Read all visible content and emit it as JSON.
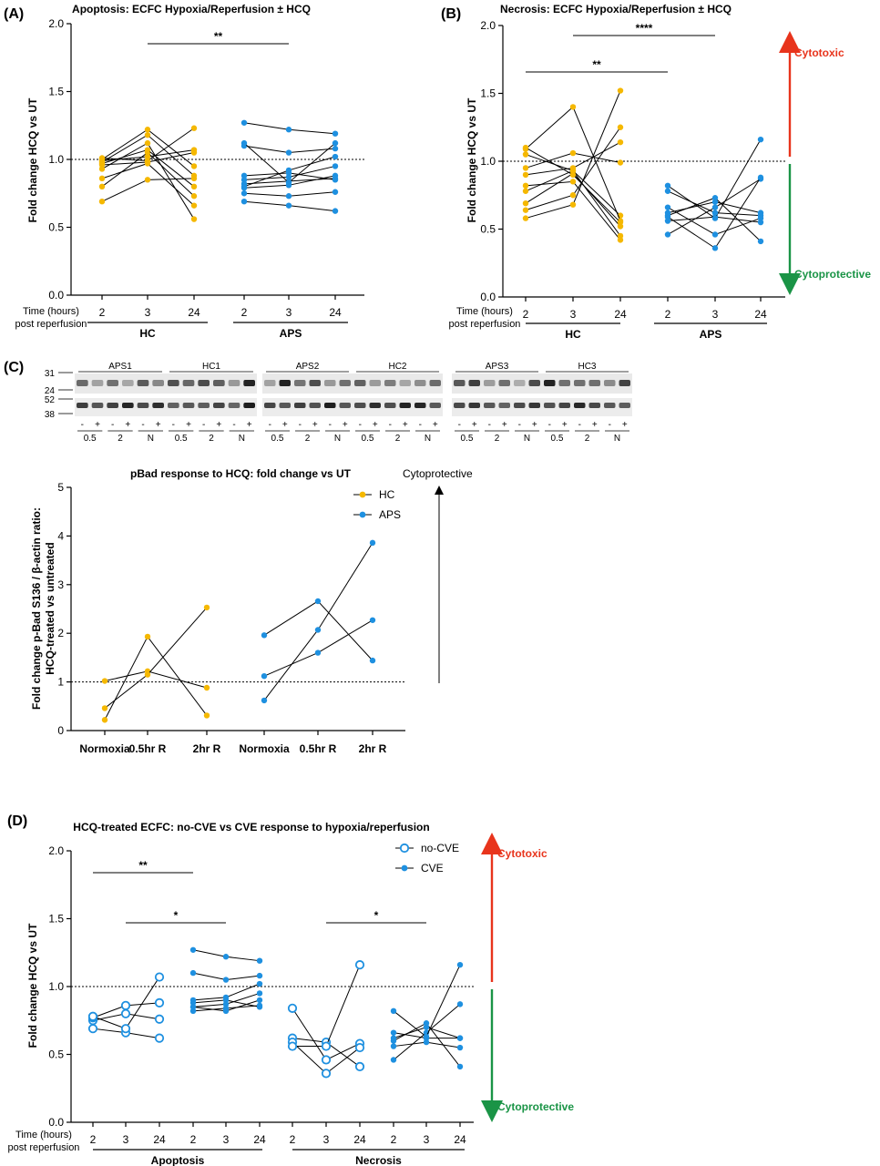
{
  "colors": {
    "hc": "#F5B800",
    "aps": "#1E90E0",
    "cytotoxic": "#E8341C",
    "cytoprotective": "#1A9446",
    "line": "#000000"
  },
  "chart_data": [
    {
      "id": "A",
      "panel": "(A)",
      "type": "scatter",
      "title": "Apoptosis: ECFC Hypoxia/Reperfusion ± HCQ",
      "ylabel": "Fold change HCQ vs UT",
      "yticks": [
        "0.0",
        "0.5",
        "1.0",
        "1.5",
        "2.0"
      ],
      "ylim": [
        0,
        2
      ],
      "xlabel_lines": [
        "Time (hours)",
        "post reperfusion"
      ],
      "x_ticks": [
        "2",
        "3",
        "24",
        "2",
        "3",
        "24"
      ],
      "groups": [
        "HC",
        "APS"
      ],
      "reference_line": 1.0,
      "significance": [
        {
          "label": "**",
          "from": 1,
          "to": 4
        }
      ],
      "series": [
        {
          "name": "HC",
          "color": "hc",
          "groupStart": 0,
          "subjects": [
            [
              0.69,
              0.85,
              0.86
            ],
            [
              0.8,
              1.05,
              0.73
            ],
            [
              0.86,
              0.97,
              0.66
            ],
            [
              0.93,
              1.12,
              0.56
            ],
            [
              0.96,
              0.98,
              1.05
            ],
            [
              0.97,
              1.07,
              0.8
            ],
            [
              0.98,
              1.18,
              0.88
            ],
            [
              1.0,
              1.22,
              0.95
            ],
            [
              0.99,
              1.02,
              1.07
            ],
            [
              1.01,
              0.99,
              1.23
            ]
          ]
        },
        {
          "name": "APS",
          "color": "aps",
          "groupStart": 3,
          "subjects": [
            [
              0.69,
              0.66,
              0.62
            ],
            [
              0.75,
              0.73,
              0.76
            ],
            [
              0.79,
              0.81,
              0.88
            ],
            [
              0.82,
              0.84,
              0.86
            ],
            [
              0.85,
              0.87,
              0.95
            ],
            [
              0.88,
              0.9,
              0.85
            ],
            [
              0.8,
              0.92,
              1.02
            ],
            [
              1.1,
              1.05,
              1.08
            ],
            [
              1.27,
              1.22,
              1.19
            ],
            [
              1.12,
              0.83,
              1.12
            ]
          ]
        }
      ]
    },
    {
      "id": "B",
      "panel": "(B)",
      "type": "scatter",
      "title": "Necrosis: ECFC Hypoxia/Reperfusion ± HCQ",
      "ylabel": "Fold change HCQ vs UT",
      "yticks": [
        "0.0",
        "0.5",
        "1.0",
        "1.5",
        "2.0"
      ],
      "ylim": [
        0,
        2
      ],
      "xlabel_lines": [
        "Time (hours)",
        "post reperfusion"
      ],
      "x_ticks": [
        "2",
        "3",
        "24",
        "2",
        "3",
        "24"
      ],
      "groups": [
        "HC",
        "APS"
      ],
      "reference_line": 1.0,
      "significance": [
        {
          "label": "**",
          "from": 0,
          "to": 3
        },
        {
          "label": "****",
          "from": 1,
          "to": 4
        }
      ],
      "arrow_labels": {
        "up": "Cytotoxic",
        "down": "Cytoprotective"
      },
      "series": [
        {
          "name": "HC",
          "color": "hc",
          "groupStart": 0,
          "subjects": [
            [
              0.58,
              0.68,
              1.52
            ],
            [
              0.64,
              0.75,
              1.25
            ],
            [
              0.69,
              0.91,
              0.52
            ],
            [
              0.78,
              0.93,
              0.6
            ],
            [
              0.82,
              0.85,
              0.42
            ],
            [
              0.9,
              0.95,
              1.14
            ],
            [
              0.95,
              1.06,
              0.99
            ],
            [
              1.05,
              0.93,
              0.45
            ],
            [
              1.09,
              1.4,
              0.56
            ],
            [
              1.1,
              0.9,
              0.55
            ]
          ]
        },
        {
          "name": "APS",
          "color": "aps",
          "groupStart": 3,
          "subjects": [
            [
              0.46,
              0.66,
              0.87
            ],
            [
              0.56,
              0.59,
              0.55
            ],
            [
              0.6,
              0.73,
              0.41
            ],
            [
              0.62,
              0.7,
              0.62
            ],
            [
              0.66,
              0.46,
              0.58
            ],
            [
              0.59,
              0.36,
              0.88
            ],
            [
              0.82,
              0.58,
              1.16
            ],
            [
              0.78,
              0.62,
              0.6
            ]
          ]
        }
      ]
    },
    {
      "id": "Cchart",
      "type": "scatter",
      "title": "pBad response to HCQ: fold change vs UT",
      "ylabel_lines": [
        "Fold change p-Bad S136 / β-actin ratio:",
        "HCQ-treated vs untreated"
      ],
      "yticks": [
        "0",
        "1",
        "2",
        "3",
        "4",
        "5"
      ],
      "ylim": [
        0,
        5
      ],
      "x_ticks": [
        "Normoxia",
        "0.5hr R",
        "2hr R",
        "Normoxia",
        "0.5hr R",
        "2hr R"
      ],
      "reference_line": 1.0,
      "arrow_label": "Cytoprotective",
      "legend": [
        {
          "name": "HC",
          "color": "hc"
        },
        {
          "name": "APS",
          "color": "aps"
        }
      ],
      "series": [
        {
          "name": "HC",
          "color": "hc",
          "groupStart": 0,
          "subjects": [
            [
              1.02,
              1.22,
              0.88
            ],
            [
              0.46,
              1.15,
              2.53
            ],
            [
              0.22,
              1.93,
              0.31
            ]
          ]
        },
        {
          "name": "APS",
          "color": "aps",
          "groupStart": 3,
          "subjects": [
            [
              1.96,
              2.66,
              1.44
            ],
            [
              1.12,
              1.6,
              2.27
            ],
            [
              0.62,
              2.07,
              3.86
            ]
          ]
        }
      ]
    },
    {
      "id": "D",
      "panel": "(D)",
      "type": "scatter",
      "title": "HCQ-treated ECFC: no-CVE vs CVE response to hypoxia/reperfusion",
      "ylabel": "Fold change HCQ vs UT",
      "yticks": [
        "0.0",
        "0.5",
        "1.0",
        "1.5",
        "2.0"
      ],
      "ylim": [
        0,
        2
      ],
      "xlabel_lines": [
        "Time (hours)",
        "post reperfusion"
      ],
      "x_ticks": [
        "2",
        "3",
        "24",
        "2",
        "3",
        "24",
        "2",
        "3",
        "24",
        "2",
        "3",
        "24"
      ],
      "groups": [
        "Apoptosis",
        "Necrosis"
      ],
      "reference_line": 1.0,
      "significance": [
        {
          "label": "**",
          "from": 0,
          "to": 3
        },
        {
          "label": "*",
          "from": 1,
          "to": 4
        },
        {
          "label": "*",
          "from": 7,
          "to": 10
        }
      ],
      "arrow_labels": {
        "up": "Cytotoxic",
        "down": "Cytoprotective"
      },
      "legend": [
        {
          "name": "no-CVE",
          "style": "open"
        },
        {
          "name": "CVE",
          "style": "filled"
        }
      ],
      "series": [
        {
          "name": "no-CVE",
          "color": "aps",
          "open": true,
          "groupStart": 0,
          "subjects": [
            [
              0.69,
              0.66,
              0.62
            ],
            [
              0.75,
              0.8,
              0.76
            ],
            [
              0.77,
              0.86,
              0.88
            ],
            [
              0.78,
              0.69,
              1.07
            ]
          ]
        },
        {
          "name": "CVE",
          "color": "aps",
          "open": false,
          "groupStart": 3,
          "subjects": [
            [
              0.82,
              0.84,
              0.86
            ],
            [
              0.85,
              0.87,
              0.95
            ],
            [
              0.88,
              0.9,
              0.85
            ],
            [
              0.9,
              0.92,
              1.02
            ],
            [
              1.1,
              1.05,
              1.08
            ],
            [
              1.27,
              1.22,
              1.19
            ],
            [
              0.85,
              0.82,
              0.9
            ]
          ]
        },
        {
          "name": "no-CVE",
          "color": "aps",
          "open": true,
          "groupStart": 6,
          "subjects": [
            [
              0.84,
              0.46,
              0.58
            ],
            [
              0.62,
              0.59,
              0.41
            ],
            [
              0.59,
              0.36,
              0.55
            ],
            [
              0.56,
              0.56,
              1.16
            ]
          ]
        },
        {
          "name": "CVE",
          "color": "aps",
          "open": false,
          "groupStart": 9,
          "subjects": [
            [
              0.46,
              0.66,
              0.87
            ],
            [
              0.56,
              0.59,
              0.55
            ],
            [
              0.6,
              0.73,
              0.41
            ],
            [
              0.62,
              0.7,
              0.62
            ],
            [
              0.66,
              0.62,
              0.62
            ],
            [
              0.82,
              0.63,
              1.16
            ]
          ]
        }
      ]
    }
  ],
  "blot": {
    "panel": "(C)",
    "markers": [
      "31",
      "24",
      "52",
      "38"
    ],
    "blocks": [
      {
        "groups": [
          "APS1",
          "HC1"
        ]
      },
      {
        "groups": [
          "APS2",
          "HC2"
        ]
      },
      {
        "groups": [
          "APS3",
          "HC3"
        ]
      }
    ],
    "treatment_signs": [
      "-",
      "+"
    ],
    "conditions": [
      "0.5",
      "2",
      "N"
    ]
  }
}
